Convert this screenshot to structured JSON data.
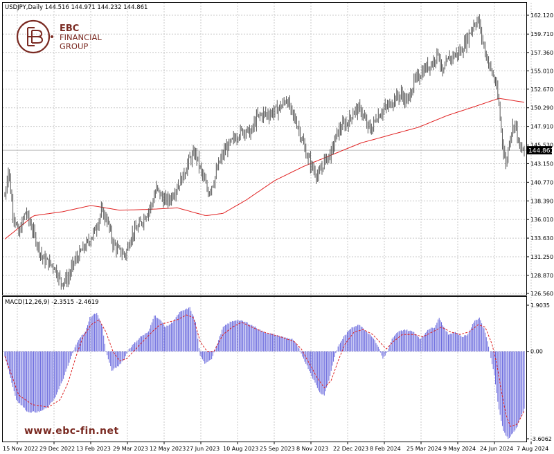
{
  "header": {
    "symbol_info": "USDJPY,Daily  144.516 144.971 144.232 144.861",
    "macd_info": "MACD(12,26,9) -2.3515 -2.4619"
  },
  "brand": {
    "logo_line1": "EBC",
    "logo_line2": "FINANCIAL",
    "logo_line3": "GROUP",
    "website": "www.ebc-fin.net",
    "color": "#7a2a22"
  },
  "colors": {
    "candles": "#555555",
    "ma": "#e02020",
    "hist": "#6666dd",
    "signal": "#dd2222",
    "grid": "#c8c8c8",
    "current_price_bg": "#000000"
  },
  "chart_data": [
    {
      "type": "candlestick",
      "symbol": "USDJPY",
      "timeframe": "Daily",
      "ylim": [
        126.56,
        162.12
      ],
      "y_ticks": [
        "162.120",
        "159.710",
        "157.360",
        "155.010",
        "152.670",
        "150.290",
        "147.910",
        "145.530",
        "143.150",
        "140.770",
        "138.390",
        "136.010",
        "133.630",
        "131.250",
        "128.870",
        "126.560"
      ],
      "current_price": "144.861",
      "x_ticks": [
        "15 Nov 2022",
        "29 Dec 2022",
        "13 Feb 2023",
        "29 Mar 2023",
        "12 May 2023",
        "27 Jun 2023",
        "10 Aug 2023",
        "25 Sep 2023",
        "8 Nov 2023",
        "22 Dec 2023",
        "8 Feb 2024",
        "25 Mar 2024",
        "9 May 2024",
        "24 Jun 2024",
        "7 Aug 2024"
      ],
      "price_path": [
        [
          0,
          139.0
        ],
        [
          3,
          142.5
        ],
        [
          7,
          137.0
        ],
        [
          12,
          134.0
        ],
        [
          18,
          137.0
        ],
        [
          22,
          135.5
        ],
        [
          28,
          133.0
        ],
        [
          33,
          131.0
        ],
        [
          38,
          130.5
        ],
        [
          43,
          130.0
        ],
        [
          49,
          128.0
        ],
        [
          55,
          128.5
        ],
        [
          60,
          130.5
        ],
        [
          67,
          132.0
        ],
        [
          72,
          133.0
        ],
        [
          78,
          134.5
        ],
        [
          84,
          137.0
        ],
        [
          89,
          136.0
        ],
        [
          94,
          133.0
        ],
        [
          99,
          132.0
        ],
        [
          105,
          131.5
        ],
        [
          110,
          134.0
        ],
        [
          116,
          135.0
        ],
        [
          122,
          136.5
        ],
        [
          128,
          138.0
        ],
        [
          132,
          140.0
        ],
        [
          138,
          138.5
        ],
        [
          143,
          138.5
        ],
        [
          149,
          140.0
        ],
        [
          155,
          141.5
        ],
        [
          160,
          143.5
        ],
        [
          166,
          144.5
        ],
        [
          171,
          142.0
        ],
        [
          177,
          139.5
        ],
        [
          182,
          141.0
        ],
        [
          186,
          143.0
        ],
        [
          192,
          145.0
        ],
        [
          198,
          146.0
        ],
        [
          203,
          147.0
        ],
        [
          209,
          147.5
        ],
        [
          214,
          147.0
        ],
        [
          219,
          149.0
        ],
        [
          225,
          149.5
        ],
        [
          230,
          149.5
        ],
        [
          236,
          150.0
        ],
        [
          241,
          150.5
        ],
        [
          245,
          151.5
        ],
        [
          250,
          149.5
        ],
        [
          255,
          148.0
        ],
        [
          259,
          146.0
        ],
        [
          262,
          144.5
        ],
        [
          268,
          142.5
        ],
        [
          273,
          141.5
        ],
        [
          278,
          143.5
        ],
        [
          284,
          144.5
        ],
        [
          289,
          147.0
        ],
        [
          294,
          148.0
        ],
        [
          299,
          148.5
        ],
        [
          304,
          150.0
        ],
        [
          310,
          150.0
        ],
        [
          315,
          148.0
        ],
        [
          319,
          147.5
        ],
        [
          323,
          149.0
        ],
        [
          329,
          150.0
        ],
        [
          334,
          150.5
        ],
        [
          339,
          151.5
        ],
        [
          345,
          152.0
        ],
        [
          350,
          151.0
        ],
        [
          356,
          153.5
        ],
        [
          361,
          154.5
        ],
        [
          367,
          155.5
        ],
        [
          372,
          156.0
        ],
        [
          377,
          157.5
        ],
        [
          381,
          154.5
        ],
        [
          386,
          156.5
        ],
        [
          391,
          157.0
        ],
        [
          397,
          157.5
        ],
        [
          402,
          159.0
        ],
        [
          408,
          161.0
        ],
        [
          412,
          161.5
        ],
        [
          417,
          158.0
        ],
        [
          422,
          155.5
        ],
        [
          427,
          153.5
        ],
        [
          430,
          150.5
        ],
        [
          433,
          146.0
        ],
        [
          436,
          143.0
        ],
        [
          440,
          147.0
        ],
        [
          444,
          148.5
        ],
        [
          448,
          145.0
        ],
        [
          452,
          144.8
        ]
      ],
      "ma_path": [
        [
          0,
          133.5
        ],
        [
          25,
          136.5
        ],
        [
          50,
          137.0
        ],
        [
          75,
          137.8
        ],
        [
          100,
          137.2
        ],
        [
          125,
          137.3
        ],
        [
          150,
          137.5
        ],
        [
          175,
          136.5
        ],
        [
          190,
          136.8
        ],
        [
          210,
          138.5
        ],
        [
          235,
          141.0
        ],
        [
          260,
          142.8
        ],
        [
          285,
          144.3
        ],
        [
          310,
          145.8
        ],
        [
          335,
          146.8
        ],
        [
          360,
          147.8
        ],
        [
          385,
          149.3
        ],
        [
          410,
          150.5
        ],
        [
          430,
          151.5
        ],
        [
          452,
          151.0
        ]
      ]
    },
    {
      "type": "macd",
      "label": "MACD(12,26,9)",
      "macd_value": -2.3515,
      "signal_value": -2.4619,
      "ylim": [
        -3.6062,
        1.9035
      ],
      "y_ticks": [
        "1.9035",
        "0.00",
        "-3.6062"
      ],
      "hist_path": [
        [
          0,
          -0.2
        ],
        [
          10,
          -2.0
        ],
        [
          20,
          -2.5
        ],
        [
          30,
          -2.5
        ],
        [
          38,
          -2.3
        ],
        [
          45,
          -1.8
        ],
        [
          52,
          -1.0
        ],
        [
          58,
          -0.2
        ],
        [
          64,
          0.5
        ],
        [
          70,
          0.8
        ],
        [
          74,
          1.4
        ],
        [
          80,
          1.6
        ],
        [
          85,
          1.0
        ],
        [
          88,
          0.0
        ],
        [
          93,
          -0.8
        ],
        [
          99,
          -0.6
        ],
        [
          104,
          -0.3
        ],
        [
          108,
          0.1
        ],
        [
          112,
          0.3
        ],
        [
          118,
          0.6
        ],
        [
          125,
          0.8
        ],
        [
          130,
          1.5
        ],
        [
          135,
          1.3
        ],
        [
          140,
          1.0
        ],
        [
          146,
          1.2
        ],
        [
          152,
          1.6
        ],
        [
          156,
          1.7
        ],
        [
          161,
          1.8
        ],
        [
          166,
          1.2
        ],
        [
          170,
          -0.2
        ],
        [
          174,
          -0.5
        ],
        [
          180,
          -0.3
        ],
        [
          184,
          0.2
        ],
        [
          190,
          1.0
        ],
        [
          196,
          1.2
        ],
        [
          202,
          1.3
        ],
        [
          210,
          1.2
        ],
        [
          218,
          1.0
        ],
        [
          225,
          0.8
        ],
        [
          233,
          0.7
        ],
        [
          241,
          0.6
        ],
        [
          250,
          0.5
        ],
        [
          255,
          0.2
        ],
        [
          260,
          -0.3
        ],
        [
          265,
          -0.8
        ],
        [
          270,
          -1.3
        ],
        [
          274,
          -1.7
        ],
        [
          278,
          -1.8
        ],
        [
          282,
          -1.2
        ],
        [
          286,
          -0.4
        ],
        [
          290,
          0.2
        ],
        [
          295,
          0.6
        ],
        [
          302,
          1.0
        ],
        [
          309,
          1.1
        ],
        [
          315,
          0.8
        ],
        [
          320,
          0.6
        ],
        [
          325,
          0.2
        ],
        [
          329,
          -0.3
        ],
        [
          333,
          0.0
        ],
        [
          337,
          0.5
        ],
        [
          342,
          0.8
        ],
        [
          348,
          0.9
        ],
        [
          356,
          0.8
        ],
        [
          362,
          0.5
        ],
        [
          368,
          0.9
        ],
        [
          374,
          1.0
        ],
        [
          378,
          1.4
        ],
        [
          382,
          1.0
        ],
        [
          386,
          0.7
        ],
        [
          392,
          0.8
        ],
        [
          398,
          0.6
        ],
        [
          403,
          0.7
        ],
        [
          408,
          1.2
        ],
        [
          413,
          1.4
        ],
        [
          418,
          0.8
        ],
        [
          422,
          0.0
        ],
        [
          426,
          -1.0
        ],
        [
          430,
          -2.4
        ],
        [
          434,
          -3.3
        ],
        [
          438,
          -3.6
        ],
        [
          442,
          -3.4
        ],
        [
          446,
          -3.1
        ],
        [
          452,
          -2.35
        ]
      ],
      "signal_path": [
        [
          0,
          -0.2
        ],
        [
          12,
          -1.8
        ],
        [
          24,
          -2.2
        ],
        [
          38,
          -2.3
        ],
        [
          48,
          -2.0
        ],
        [
          55,
          -1.3
        ],
        [
          62,
          -0.2
        ],
        [
          68,
          0.6
        ],
        [
          75,
          1.1
        ],
        [
          82,
          1.3
        ],
        [
          88,
          0.8
        ],
        [
          94,
          0.0
        ],
        [
          100,
          -0.4
        ],
        [
          106,
          -0.3
        ],
        [
          112,
          0.0
        ],
        [
          120,
          0.4
        ],
        [
          128,
          0.8
        ],
        [
          135,
          1.1
        ],
        [
          142,
          1.2
        ],
        [
          150,
          1.3
        ],
        [
          158,
          1.5
        ],
        [
          164,
          1.4
        ],
        [
          170,
          0.4
        ],
        [
          176,
          0.0
        ],
        [
          182,
          0.0
        ],
        [
          190,
          0.7
        ],
        [
          198,
          1.0
        ],
        [
          206,
          1.2
        ],
        [
          215,
          1.0
        ],
        [
          225,
          0.8
        ],
        [
          240,
          0.6
        ],
        [
          252,
          0.4
        ],
        [
          258,
          0.1
        ],
        [
          265,
          -0.5
        ],
        [
          272,
          -1.1
        ],
        [
          278,
          -1.5
        ],
        [
          284,
          -1.2
        ],
        [
          290,
          -0.4
        ],
        [
          296,
          0.3
        ],
        [
          304,
          0.8
        ],
        [
          312,
          0.9
        ],
        [
          320,
          0.7
        ],
        [
          326,
          0.4
        ],
        [
          332,
          0.1
        ],
        [
          338,
          0.4
        ],
        [
          346,
          0.7
        ],
        [
          356,
          0.7
        ],
        [
          364,
          0.6
        ],
        [
          372,
          0.8
        ],
        [
          380,
          1.0
        ],
        [
          388,
          0.8
        ],
        [
          396,
          0.7
        ],
        [
          404,
          0.8
        ],
        [
          412,
          1.1
        ],
        [
          418,
          1.0
        ],
        [
          424,
          0.3
        ],
        [
          428,
          -0.5
        ],
        [
          432,
          -1.6
        ],
        [
          436,
          -2.6
        ],
        [
          440,
          -3.1
        ],
        [
          446,
          -3.0
        ],
        [
          452,
          -2.46
        ]
      ]
    }
  ]
}
